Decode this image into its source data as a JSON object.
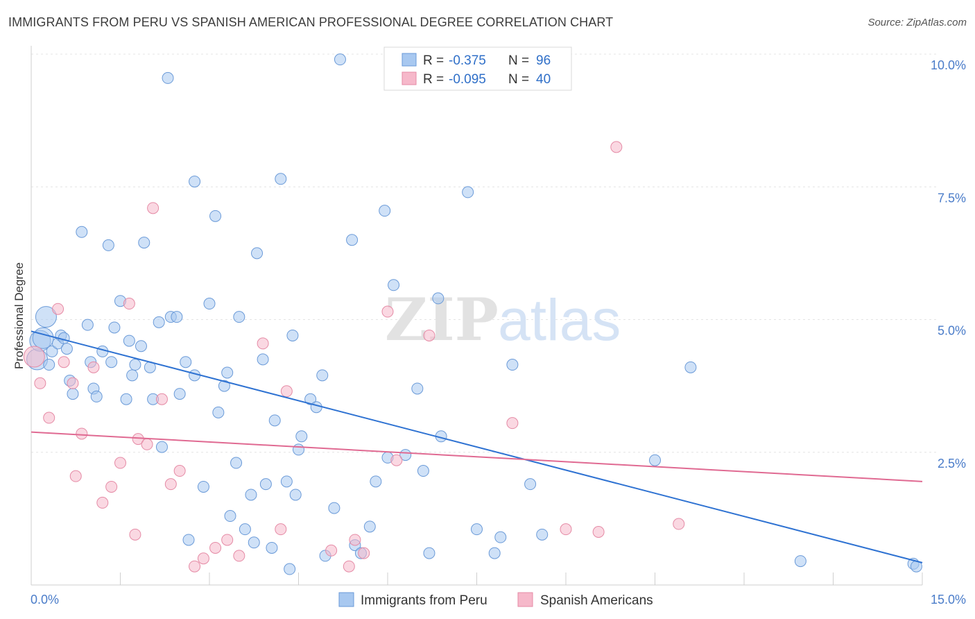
{
  "header": {
    "title": "IMMIGRANTS FROM PERU VS SPANISH AMERICAN PROFESSIONAL DEGREE CORRELATION CHART",
    "source": "Source: ZipAtlas.com"
  },
  "watermark": {
    "zip": "ZIP",
    "atlas": "atlas"
  },
  "legend_top": [
    {
      "r_label": "R =",
      "r_value": "-0.375",
      "n_label": "N =",
      "n_value": "96",
      "color": "#a8c8f0"
    },
    {
      "r_label": "R =",
      "r_value": "-0.095",
      "n_label": "N =",
      "n_value": "40",
      "color": "#f6b8ca"
    }
  ],
  "legend_bottom": [
    {
      "label": "Immigrants from Peru",
      "color": "#a8c8f0"
    },
    {
      "label": "Spanish Americans",
      "color": "#f6b8ca"
    }
  ],
  "chart_data": {
    "type": "scatter",
    "ylabel": "Professional Degree",
    "xlim": [
      0,
      15
    ],
    "ylim": [
      0,
      10
    ],
    "x_tick_labels": [
      {
        "value": 0,
        "label": "0.0%"
      },
      {
        "value": 15,
        "label": "15.0%"
      }
    ],
    "y_tick_labels": [
      {
        "value": 2.5,
        "label": "2.5%"
      },
      {
        "value": 5.0,
        "label": "5.0%"
      },
      {
        "value": 7.5,
        "label": "7.5%"
      },
      {
        "value": 10.0,
        "label": "10.0%"
      }
    ],
    "grid": true,
    "series": [
      {
        "name": "Immigrants from Peru",
        "color": "#a8c8f0",
        "stroke": "#6a9ad8",
        "trend": {
          "x0": 0,
          "y0": 4.78,
          "x1": 15,
          "y1": 0.42,
          "color": "#2e72d2"
        },
        "points": [
          [
            0.1,
            4.25
          ],
          [
            0.15,
            4.6
          ],
          [
            0.25,
            5.05
          ],
          [
            0.2,
            4.65
          ],
          [
            0.3,
            4.15
          ],
          [
            0.35,
            4.4
          ],
          [
            0.45,
            4.55
          ],
          [
            0.5,
            4.7
          ],
          [
            0.55,
            4.65
          ],
          [
            0.6,
            4.45
          ],
          [
            0.65,
            3.85
          ],
          [
            0.7,
            3.6
          ],
          [
            0.85,
            6.65
          ],
          [
            0.95,
            4.9
          ],
          [
            1.0,
            4.2
          ],
          [
            1.05,
            3.7
          ],
          [
            1.1,
            3.55
          ],
          [
            1.2,
            4.4
          ],
          [
            1.3,
            6.4
          ],
          [
            1.35,
            4.2
          ],
          [
            1.4,
            4.85
          ],
          [
            1.5,
            5.35
          ],
          [
            1.6,
            3.5
          ],
          [
            1.65,
            4.6
          ],
          [
            1.7,
            3.95
          ],
          [
            1.75,
            4.15
          ],
          [
            1.85,
            4.5
          ],
          [
            1.9,
            6.45
          ],
          [
            2.0,
            4.1
          ],
          [
            2.05,
            3.5
          ],
          [
            2.15,
            4.95
          ],
          [
            2.2,
            2.6
          ],
          [
            2.3,
            9.55
          ],
          [
            2.35,
            5.05
          ],
          [
            2.45,
            5.05
          ],
          [
            2.5,
            3.6
          ],
          [
            2.6,
            4.2
          ],
          [
            2.65,
            0.85
          ],
          [
            2.75,
            3.95
          ],
          [
            2.75,
            7.6
          ],
          [
            2.9,
            1.85
          ],
          [
            3.0,
            5.3
          ],
          [
            3.1,
            6.95
          ],
          [
            3.15,
            3.25
          ],
          [
            3.25,
            3.75
          ],
          [
            3.3,
            4.0
          ],
          [
            3.35,
            1.3
          ],
          [
            3.45,
            2.3
          ],
          [
            3.5,
            5.05
          ],
          [
            3.6,
            1.05
          ],
          [
            3.7,
            1.7
          ],
          [
            3.75,
            0.8
          ],
          [
            3.8,
            6.25
          ],
          [
            3.9,
            4.25
          ],
          [
            3.95,
            1.9
          ],
          [
            4.05,
            0.7
          ],
          [
            4.1,
            3.1
          ],
          [
            4.2,
            7.65
          ],
          [
            4.3,
            1.95
          ],
          [
            4.35,
            0.3
          ],
          [
            4.45,
            1.7
          ],
          [
            4.5,
            2.55
          ],
          [
            4.55,
            2.8
          ],
          [
            4.7,
            3.5
          ],
          [
            4.8,
            3.35
          ],
          [
            4.9,
            3.95
          ],
          [
            4.95,
            0.55
          ],
          [
            5.1,
            1.45
          ],
          [
            5.2,
            9.9
          ],
          [
            5.4,
            6.5
          ],
          [
            5.45,
            0.75
          ],
          [
            5.55,
            0.6
          ],
          [
            5.7,
            1.1
          ],
          [
            5.8,
            1.95
          ],
          [
            5.95,
            7.05
          ],
          [
            6.0,
            2.4
          ],
          [
            6.1,
            5.65
          ],
          [
            6.3,
            2.45
          ],
          [
            6.5,
            3.7
          ],
          [
            6.6,
            2.15
          ],
          [
            6.7,
            0.6
          ],
          [
            6.85,
            5.4
          ],
          [
            6.9,
            2.8
          ],
          [
            7.35,
            7.4
          ],
          [
            7.5,
            1.05
          ],
          [
            7.8,
            0.6
          ],
          [
            7.9,
            0.9
          ],
          [
            8.1,
            4.15
          ],
          [
            8.4,
            1.9
          ],
          [
            8.6,
            0.95
          ],
          [
            10.5,
            2.35
          ],
          [
            11.1,
            4.1
          ],
          [
            12.95,
            0.45
          ],
          [
            14.85,
            0.4
          ],
          [
            14.9,
            0.35
          ],
          [
            4.4,
            4.7
          ]
        ]
      },
      {
        "name": "Spanish Americans",
        "color": "#f6b8ca",
        "stroke": "#e58aa5",
        "trend": {
          "x0": 0,
          "y0": 2.88,
          "x1": 15,
          "y1": 1.95,
          "color": "#e06a92"
        },
        "points": [
          [
            0.05,
            4.3
          ],
          [
            0.15,
            3.8
          ],
          [
            0.3,
            3.15
          ],
          [
            0.45,
            5.2
          ],
          [
            0.55,
            4.2
          ],
          [
            0.7,
            3.8
          ],
          [
            0.75,
            2.05
          ],
          [
            0.85,
            2.85
          ],
          [
            1.05,
            4.1
          ],
          [
            1.2,
            1.55
          ],
          [
            1.35,
            1.85
          ],
          [
            1.5,
            2.3
          ],
          [
            1.65,
            5.3
          ],
          [
            1.75,
            0.95
          ],
          [
            1.8,
            2.75
          ],
          [
            1.95,
            2.65
          ],
          [
            2.05,
            7.1
          ],
          [
            2.2,
            3.5
          ],
          [
            2.35,
            1.9
          ],
          [
            2.5,
            2.15
          ],
          [
            2.75,
            0.35
          ],
          [
            2.9,
            0.5
          ],
          [
            3.1,
            0.7
          ],
          [
            3.3,
            0.85
          ],
          [
            3.5,
            0.55
          ],
          [
            3.9,
            4.55
          ],
          [
            4.2,
            1.05
          ],
          [
            4.3,
            3.65
          ],
          [
            5.05,
            0.65
          ],
          [
            5.35,
            0.35
          ],
          [
            5.45,
            0.85
          ],
          [
            5.6,
            0.6
          ],
          [
            6.0,
            5.15
          ],
          [
            6.15,
            2.35
          ],
          [
            6.7,
            4.7
          ],
          [
            8.1,
            3.05
          ],
          [
            9.0,
            1.05
          ],
          [
            9.55,
            1.0
          ],
          [
            9.85,
            8.25
          ],
          [
            10.9,
            1.15
          ]
        ]
      }
    ]
  }
}
